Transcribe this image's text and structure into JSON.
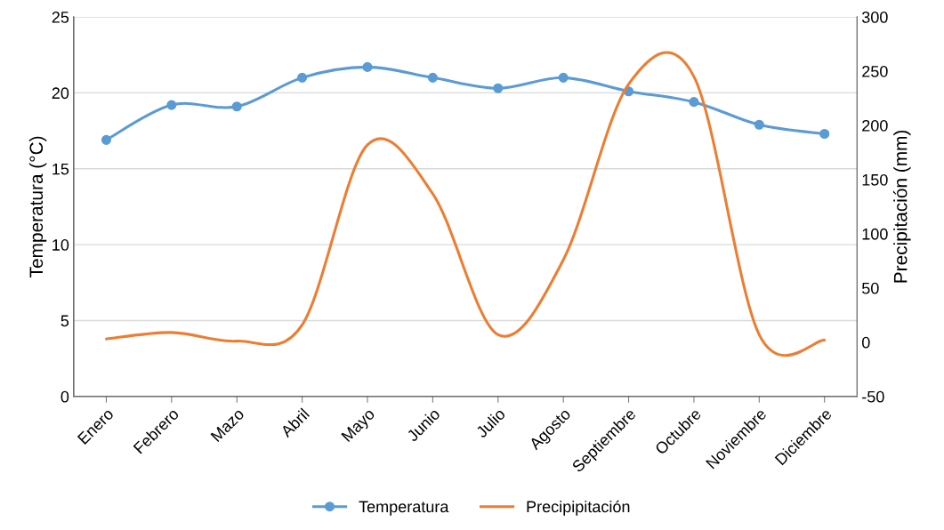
{
  "chart_data": {
    "type": "line",
    "categories": [
      "Enero",
      "Febrero",
      "Mazo",
      "Abril",
      "Mayo",
      "Junio",
      "Julio",
      "Agosto",
      "Septiembre",
      "Octubre",
      "Noviembre",
      "Diciembre"
    ],
    "series": [
      {
        "name": "Temperatura",
        "color": "#5b9bd5",
        "marker": "circle",
        "values": [
          16.9,
          19.2,
          19.1,
          21.0,
          21.7,
          21.0,
          20.3,
          21.0,
          20.1,
          19.4,
          17.9,
          17.3
        ]
      },
      {
        "name": "Precipipitación",
        "color": "#ed7d31",
        "marker": "none",
        "axis": "y2",
        "values": [
          3,
          9,
          1,
          16,
          182,
          137,
          7,
          76,
          238,
          245,
          7,
          2
        ]
      }
    ],
    "ylabel": "Temperatura (°C)",
    "y2label": "Precipitación (mm)",
    "ylim": [
      0,
      25
    ],
    "yticks": [
      0,
      5,
      10,
      15,
      20,
      25
    ],
    "y2lim": [
      -50,
      300
    ],
    "y2ticks": [
      -50,
      0,
      50,
      100,
      150,
      200,
      250,
      300
    ],
    "grid": "y",
    "legend": "bottom",
    "line_style": "solid"
  }
}
